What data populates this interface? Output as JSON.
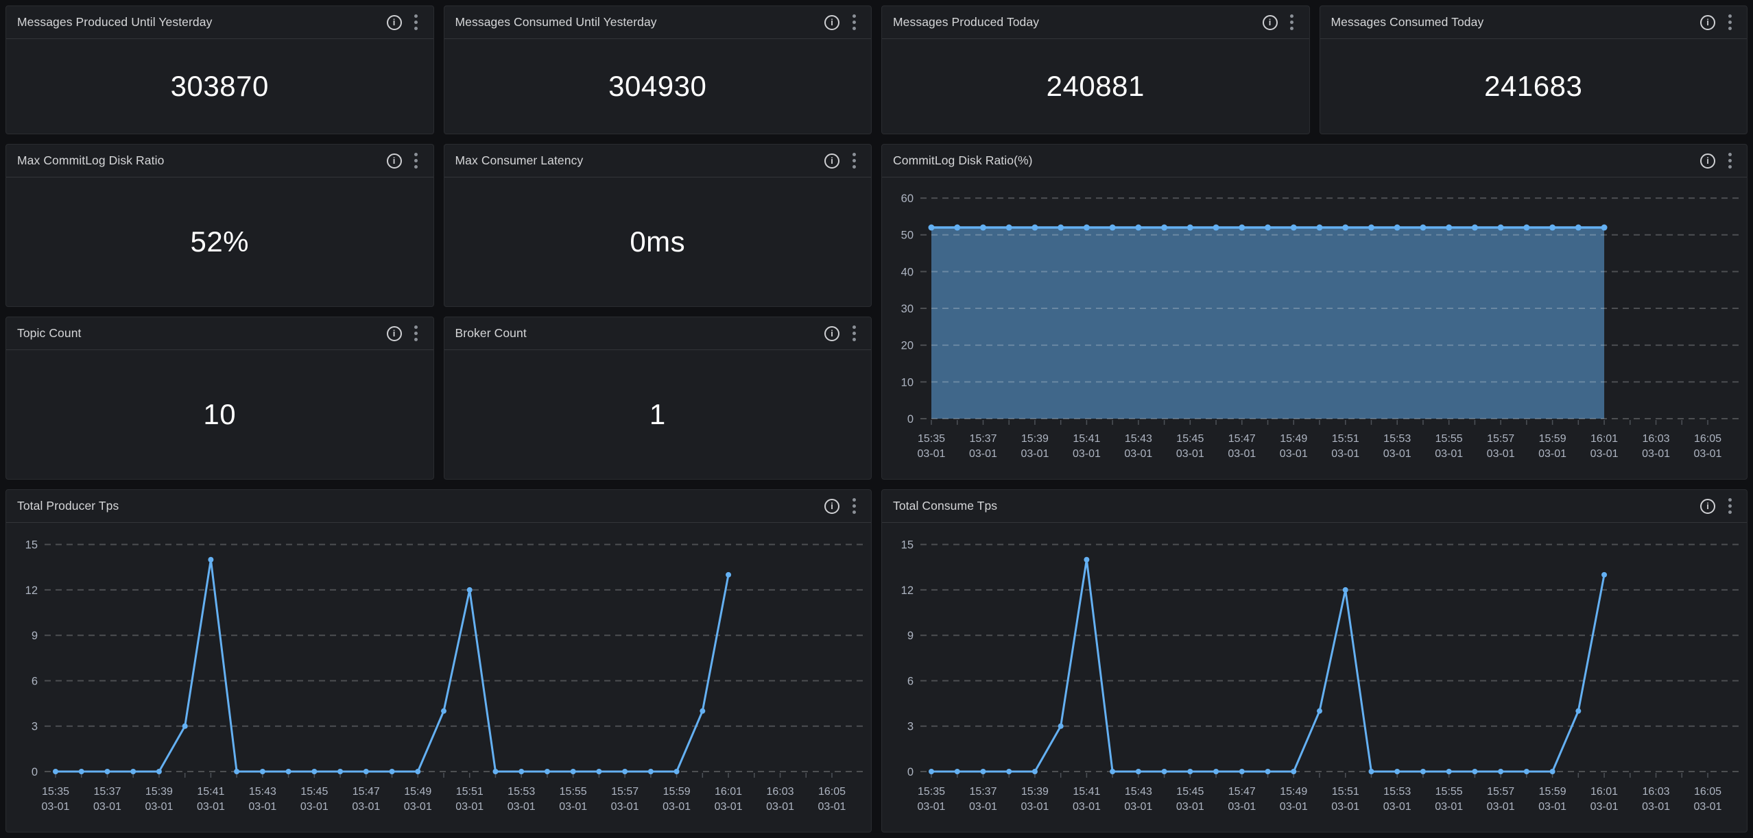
{
  "theme": {
    "page_bg": "#0f1013",
    "panel_bg": "#1c1e22",
    "panel_border": "#2a2c30",
    "header_divider": "#333539",
    "title_color": "#d5d6d8",
    "value_color": "#ffffff",
    "axis_text": "#aeb5c2",
    "grid_color": "rgba(255,255,255,0.22)",
    "tick_color": "#4d5157",
    "icon_color": "#cfd0d3",
    "kebab_color": "#8b9097",
    "accent_blue": "#64B0F2"
  },
  "icons": {
    "info_glyph": "i",
    "info_name": "info-circle",
    "menu_name": "kebab-vertical-dots"
  },
  "panels": {
    "produced_yesterday": {
      "title": "Messages Produced Until Yesterday",
      "value": "303870"
    },
    "consumed_yesterday": {
      "title": "Messages Consumed Until Yesterday",
      "value": "304930"
    },
    "produced_today": {
      "title": "Messages Produced Today",
      "value": "240881"
    },
    "consumed_today": {
      "title": "Messages Consumed Today",
      "value": "241683"
    },
    "max_commitlog_disk_ratio": {
      "title": "Max CommitLog Disk Ratio",
      "value": "52%"
    },
    "max_consumer_latency": {
      "title": "Max Consumer Latency",
      "value": "0ms"
    },
    "topic_count": {
      "title": "Topic Count",
      "value": "10"
    },
    "broker_count": {
      "title": "Broker Count",
      "value": "1"
    }
  },
  "chart_data": [
    {
      "type": "area",
      "title": "CommitLog Disk Ratio(%)",
      "x_times": [
        "15:35",
        "15:37",
        "15:39",
        "15:41",
        "15:43",
        "15:45",
        "15:47",
        "15:49",
        "15:51",
        "15:53",
        "15:55",
        "15:57",
        "15:59",
        "16:01",
        "16:03",
        "16:05"
      ],
      "x_date": "03-01",
      "x_label_step_minutes": 2,
      "x_total_minutes": 30,
      "y_ticks": [
        0,
        10,
        20,
        30,
        40,
        50,
        60
      ],
      "y_axis_max": 63,
      "grid": "dashed",
      "legend": "none",
      "line_color": "#64B0F2",
      "fill_color": "rgba(100,176,242,0.5)",
      "values": [
        52,
        52,
        52,
        52,
        52,
        52,
        52,
        52,
        52,
        52,
        52,
        52,
        52,
        52,
        52,
        52,
        52,
        52,
        52,
        52,
        52,
        52,
        52,
        52,
        52,
        52,
        52
      ]
    },
    {
      "type": "line",
      "title": "Total Producer Tps",
      "x_times": [
        "15:35",
        "15:37",
        "15:39",
        "15:41",
        "15:43",
        "15:45",
        "15:47",
        "15:49",
        "15:51",
        "15:53",
        "15:55",
        "15:57",
        "15:59",
        "16:01",
        "16:03",
        "16:05"
      ],
      "x_date": "03-01",
      "x_label_step_minutes": 2,
      "x_total_minutes": 30,
      "y_ticks": [
        0,
        3,
        6,
        9,
        12,
        15
      ],
      "y_axis_max": 15.8,
      "grid": "dashed",
      "legend": "none",
      "line_color": "#64B0F2",
      "fill_color": null,
      "values": [
        0,
        0,
        0,
        0,
        0,
        3,
        14,
        0,
        0,
        0,
        0,
        0,
        0,
        0,
        0,
        4,
        12,
        0,
        0,
        0,
        0,
        0,
        0,
        0,
        0,
        4,
        13
      ]
    },
    {
      "type": "line",
      "title": "Total Consume Tps",
      "x_times": [
        "15:35",
        "15:37",
        "15:39",
        "15:41",
        "15:43",
        "15:45",
        "15:47",
        "15:49",
        "15:51",
        "15:53",
        "15:55",
        "15:57",
        "15:59",
        "16:01",
        "16:03",
        "16:05"
      ],
      "x_date": "03-01",
      "x_label_step_minutes": 2,
      "x_total_minutes": 30,
      "y_ticks": [
        0,
        3,
        6,
        9,
        12,
        15
      ],
      "y_axis_max": 15.8,
      "grid": "dashed",
      "legend": "none",
      "line_color": "#64B0F2",
      "fill_color": null,
      "values": [
        0,
        0,
        0,
        0,
        0,
        3,
        14,
        0,
        0,
        0,
        0,
        0,
        0,
        0,
        0,
        4,
        12,
        0,
        0,
        0,
        0,
        0,
        0,
        0,
        0,
        4,
        13
      ]
    }
  ]
}
